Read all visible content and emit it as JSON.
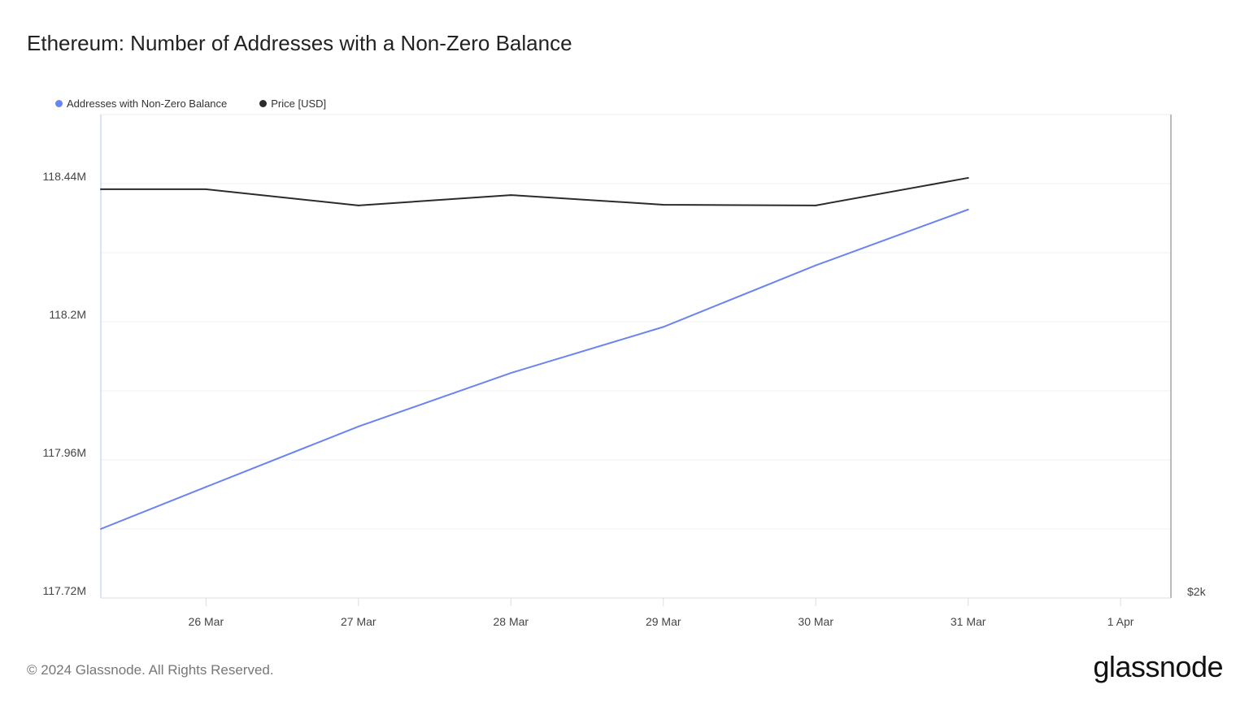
{
  "title": "Ethereum: Number of Addresses with a Non-Zero Balance",
  "footer": "© 2024 Glassnode. All Rights Reserved.",
  "logo": "glassnode",
  "colors": {
    "addresses": "#6b84f0",
    "price": "#2b2b2b"
  },
  "chart_data": {
    "type": "line",
    "title": "Ethereum: Number of Addresses with a Non-Zero Balance",
    "x_unit": "day of March 2024",
    "x": [
      25.31,
      26,
      27,
      28,
      29,
      30,
      31
    ],
    "xlim": [
      25.31,
      32.33
    ],
    "x_ticks": [
      {
        "value": 26,
        "label": "26 Mar"
      },
      {
        "value": 27,
        "label": "27 Mar"
      },
      {
        "value": 28,
        "label": "28 Mar"
      },
      {
        "value": 29,
        "label": "29 Mar"
      },
      {
        "value": 30,
        "label": "30 Mar"
      },
      {
        "value": 31,
        "label": "31 Mar"
      },
      {
        "value": 32,
        "label": "1 Apr"
      }
    ],
    "y_left": {
      "ylim": [
        117.72,
        118.56
      ],
      "ticks": [
        {
          "value": 117.72,
          "label": "117.72M"
        },
        {
          "value": 117.96,
          "label": "117.96M"
        },
        {
          "value": 118.2,
          "label": "118.2M"
        },
        {
          "value": 118.44,
          "label": "118.44M"
        }
      ],
      "grid": [
        117.84,
        117.96,
        118.08,
        118.2,
        118.32,
        118.44
      ]
    },
    "y_right": {
      "ylim": [
        2000,
        4000
      ],
      "ticks": [
        {
          "value": 2000,
          "label": "$2k"
        }
      ]
    },
    "legend_position": "top-left",
    "series": [
      {
        "name": "Addresses with Non-Zero Balance",
        "axis": "left",
        "values": [
          117.84,
          117.913,
          118.018,
          118.111,
          118.191,
          118.298,
          118.395
        ]
      },
      {
        "name": "Price [USD]",
        "axis": "right",
        "values": [
          3691,
          3691,
          3624,
          3667,
          3627,
          3624,
          3738
        ]
      }
    ]
  }
}
